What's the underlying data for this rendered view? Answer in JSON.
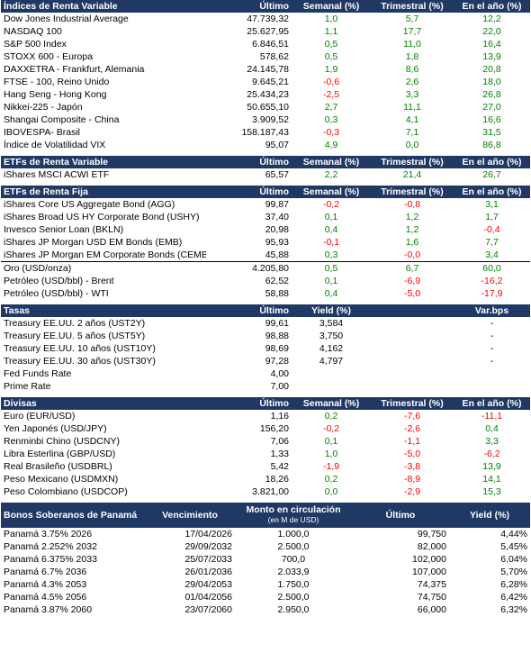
{
  "renta_variable": {
    "title": "Índices de Renta Variable",
    "headers": [
      "Último",
      "Semanal (%)",
      "Trimestral (%)",
      "En el año (%)"
    ],
    "rows": [
      {
        "name": "Dow Jones Industrial Average",
        "last": "47.739,32",
        "w": "1,0",
        "q": "5,7",
        "y": "12,2",
        "ws": "pos",
        "qs": "pos",
        "ys": "pos"
      },
      {
        "name": "NASDAQ 100",
        "last": "25.627,95",
        "w": "1,1",
        "q": "17,7",
        "y": "22,0",
        "ws": "pos",
        "qs": "pos",
        "ys": "pos"
      },
      {
        "name": "S&P 500 Index",
        "last": "6.846,51",
        "w": "0,5",
        "q": "11,0",
        "y": "16,4",
        "ws": "pos",
        "qs": "pos",
        "ys": "pos"
      },
      {
        "name": "STOXX 600 - Europa",
        "last": "578,62",
        "w": "0,5",
        "q": "1,8",
        "y": "13,9",
        "ws": "pos",
        "qs": "pos",
        "ys": "pos"
      },
      {
        "name": "DAXXETRA - Frankfurt, Alemania",
        "last": "24.145,78",
        "w": "1,9",
        "q": "8,6",
        "y": "20,8",
        "ws": "pos",
        "qs": "pos",
        "ys": "pos"
      },
      {
        "name": "FTSE - 100, Reino Unido",
        "last": "9.645,21",
        "w": "-0,6",
        "q": "2,6",
        "y": "18,0",
        "ws": "neg",
        "qs": "pos",
        "ys": "pos"
      },
      {
        "name": "Hang Seng - Hong Kong",
        "last": "25.434,23",
        "w": "-2,5",
        "q": "3,3",
        "y": "26,8",
        "ws": "neg",
        "qs": "pos",
        "ys": "pos"
      },
      {
        "name": "Nikkei-225 - Japón",
        "last": "50.655,10",
        "w": "2,7",
        "q": "11,1",
        "y": "27,0",
        "ws": "pos",
        "qs": "pos",
        "ys": "pos"
      },
      {
        "name": "Shangai Composite - China",
        "last": "3.909,52",
        "w": "0,3",
        "q": "4,1",
        "y": "16,6",
        "ws": "pos",
        "qs": "pos",
        "ys": "pos"
      },
      {
        "name": "IBOVESPA- Brasil",
        "last": "158.187,43",
        "w": "-0,3",
        "q": "7,1",
        "y": "31,5",
        "ws": "neg",
        "qs": "pos",
        "ys": "pos"
      },
      {
        "name": "Índice de Volatilidad VIX",
        "last": "95,07",
        "w": "4,9",
        "q": "0,0",
        "y": "86,8",
        "ws": "pos",
        "qs": "pos",
        "ys": "pos"
      }
    ]
  },
  "etf_variable": {
    "title": "ETFs de Renta Variable",
    "headers": [
      "Último",
      "Semanal (%)",
      "Trimestral (%)",
      "En el año (%)"
    ],
    "rows": [
      {
        "name": "iShares MSCI ACWI ETF",
        "last": "65,57",
        "w": "2,2",
        "q": "21,4",
        "y": "26,7",
        "ws": "pos",
        "qs": "pos",
        "ys": "pos"
      }
    ]
  },
  "etf_fija": {
    "title": "ETFs de Renta Fija",
    "headers": [
      "Último",
      "Semanal (%)",
      "Trimestral (%)",
      "En el año (%)"
    ],
    "rows": [
      {
        "name": "iShares Core US Aggregate Bond (AGG)",
        "last": "99,87",
        "w": "-0,2",
        "q": "-0,8",
        "y": "3,1",
        "ws": "neg",
        "qs": "neg",
        "ys": "pos"
      },
      {
        "name": "iShares Broad US HY Corporate Bond (USHY)",
        "last": "37,40",
        "w": "0,1",
        "q": "1,2",
        "y": "1,7",
        "ws": "pos",
        "qs": "pos",
        "ys": "pos"
      },
      {
        "name": "Invesco Senior Loan (BKLN)",
        "last": "20,98",
        "w": "0,4",
        "q": "1,2",
        "y": "-0,4",
        "ws": "pos",
        "qs": "pos",
        "ys": "neg"
      },
      {
        "name": "iShares JP Morgan USD EM Bonds (EMB)",
        "last": "95,93",
        "w": "-0,1",
        "q": "1,6",
        "y": "7,7",
        "ws": "neg",
        "qs": "pos",
        "ys": "pos"
      },
      {
        "name": "iShares JP Morgan EM Corporate Bonds (CEMB)",
        "last": "45,88",
        "w": "0,3",
        "q": "-0,0",
        "y": "3,4",
        "ws": "pos",
        "qs": "neg",
        "ys": "pos"
      }
    ]
  },
  "commodities": {
    "rows": [
      {
        "name": "Oro (USD/onza)",
        "last": "4.205,80",
        "w": "0,5",
        "q": "6,7",
        "y": "60,0",
        "ws": "pos",
        "qs": "pos",
        "ys": "pos"
      },
      {
        "name": "Petróleo (USD/bbl) - Brent",
        "last": "62,52",
        "w": "0,1",
        "q": "-6,9",
        "y": "-16,2",
        "ws": "pos",
        "qs": "neg",
        "ys": "neg"
      },
      {
        "name": "Petróleo (USD/bbl) - WTI",
        "last": "58,88",
        "w": "0,4",
        "q": "-5,0",
        "y": "-17,9",
        "ws": "pos",
        "qs": "neg",
        "ys": "neg"
      }
    ]
  },
  "tasas": {
    "title": "Tasas",
    "headers": [
      "Último",
      "Yield (%)",
      "Var.bps"
    ],
    "rows": [
      {
        "name": "Treasury EE.UU. 2 años (UST2Y)",
        "last": "99,61",
        "yield": "3,584",
        "bps": "-"
      },
      {
        "name": "Treasury EE.UU. 5 años (UST5Y)",
        "last": "98,88",
        "yield": "3,750",
        "bps": "-"
      },
      {
        "name": "Treasury EE.UU. 10 años (UST10Y)",
        "last": "98,69",
        "yield": "4,162",
        "bps": "-"
      },
      {
        "name": "Treasury EE.UU. 30 años (UST30Y)",
        "last": "97,28",
        "yield": "4,797",
        "bps": "-"
      },
      {
        "name": "Fed Funds Rate",
        "last": "4,00",
        "yield": "",
        "bps": ""
      },
      {
        "name": "Prime Rate",
        "last": "7,00",
        "yield": "",
        "bps": ""
      }
    ]
  },
  "divisas": {
    "title": "Divisas",
    "headers": [
      "Último",
      "Semanal (%)",
      "Trimestral (%)",
      "En el año (%)"
    ],
    "rows": [
      {
        "name": "Euro (EUR/USD)",
        "last": "1,16",
        "w": "0,2",
        "q": "-7,6",
        "y": "-11,1",
        "ws": "pos",
        "qs": "neg",
        "ys": "neg"
      },
      {
        "name": "Yen Japonés (USD/JPY)",
        "last": "156,20",
        "w": "-0,2",
        "q": "-2,6",
        "y": "0,4",
        "ws": "neg",
        "qs": "neg",
        "ys": "pos"
      },
      {
        "name": "Renminbi Chino (USDCNY)",
        "last": "7,06",
        "w": "0,1",
        "q": "-1,1",
        "y": "3,3",
        "ws": "pos",
        "qs": "neg",
        "ys": "pos"
      },
      {
        "name": "Libra Esterlina (GBP/USD)",
        "last": "1,33",
        "w": "1,0",
        "q": "-5,0",
        "y": "-6,2",
        "ws": "pos",
        "qs": "neg",
        "ys": "neg"
      },
      {
        "name": "Real Brasileño (USDBRL)",
        "last": "5,42",
        "w": "-1,9",
        "q": "-3,8",
        "y": "13,9",
        "ws": "neg",
        "qs": "neg",
        "ys": "pos"
      },
      {
        "name": "Peso Mexicano (USDMXN)",
        "last": "18,26",
        "w": "0,2",
        "q": "-8,9",
        "y": "14,1",
        "ws": "pos",
        "qs": "neg",
        "ys": "pos"
      },
      {
        "name": "Peso Colombiano (USDCOP)",
        "last": "3.821,00",
        "w": "0,0",
        "q": "-2,9",
        "y": "15,3",
        "ws": "pos",
        "qs": "neg",
        "ys": "pos"
      }
    ]
  },
  "bonos": {
    "title": "Bonos Soberanos de Panamá",
    "headers": {
      "venc": "Vencimiento",
      "monto": "Monto en circulación",
      "monto_sub": "(en M de USD)",
      "last": "Último",
      "yield": "Yield (%)"
    },
    "rows": [
      {
        "name": "Panamá 3.75% 2026",
        "venc": "17/04/2026",
        "monto": "1.000,0",
        "last": "99,750",
        "yield": "4,44%"
      },
      {
        "name": "Panamá 2.252% 2032",
        "venc": "29/09/2032",
        "monto": "2.500,0",
        "last": "82,000",
        "yield": "5,45%"
      },
      {
        "name": "Panamá 6.375% 2033",
        "venc": "25/07/2033",
        "monto": "700,0",
        "last": "102,000",
        "yield": "6,04%"
      },
      {
        "name": "Panamá 6.7% 2036",
        "venc": "26/01/2036",
        "monto": "2.033,9",
        "last": "107,000",
        "yield": "5,70%"
      },
      {
        "name": "Panamá 4.3% 2053",
        "venc": "29/04/2053",
        "monto": "1.750,0",
        "last": "74,375",
        "yield": "6,28%"
      },
      {
        "name": "Panamá 4.5% 2056",
        "venc": "01/04/2056",
        "monto": "2.500,0",
        "last": "74,750",
        "yield": "6,42%"
      },
      {
        "name": "Panamá 3.87% 2060",
        "venc": "23/07/2060",
        "monto": "2.950,0",
        "last": "66,000",
        "yield": "6,32%"
      }
    ]
  },
  "colors": {
    "header_bg": "#1f3864",
    "positive": "#008000",
    "negative": "#ff0000"
  }
}
